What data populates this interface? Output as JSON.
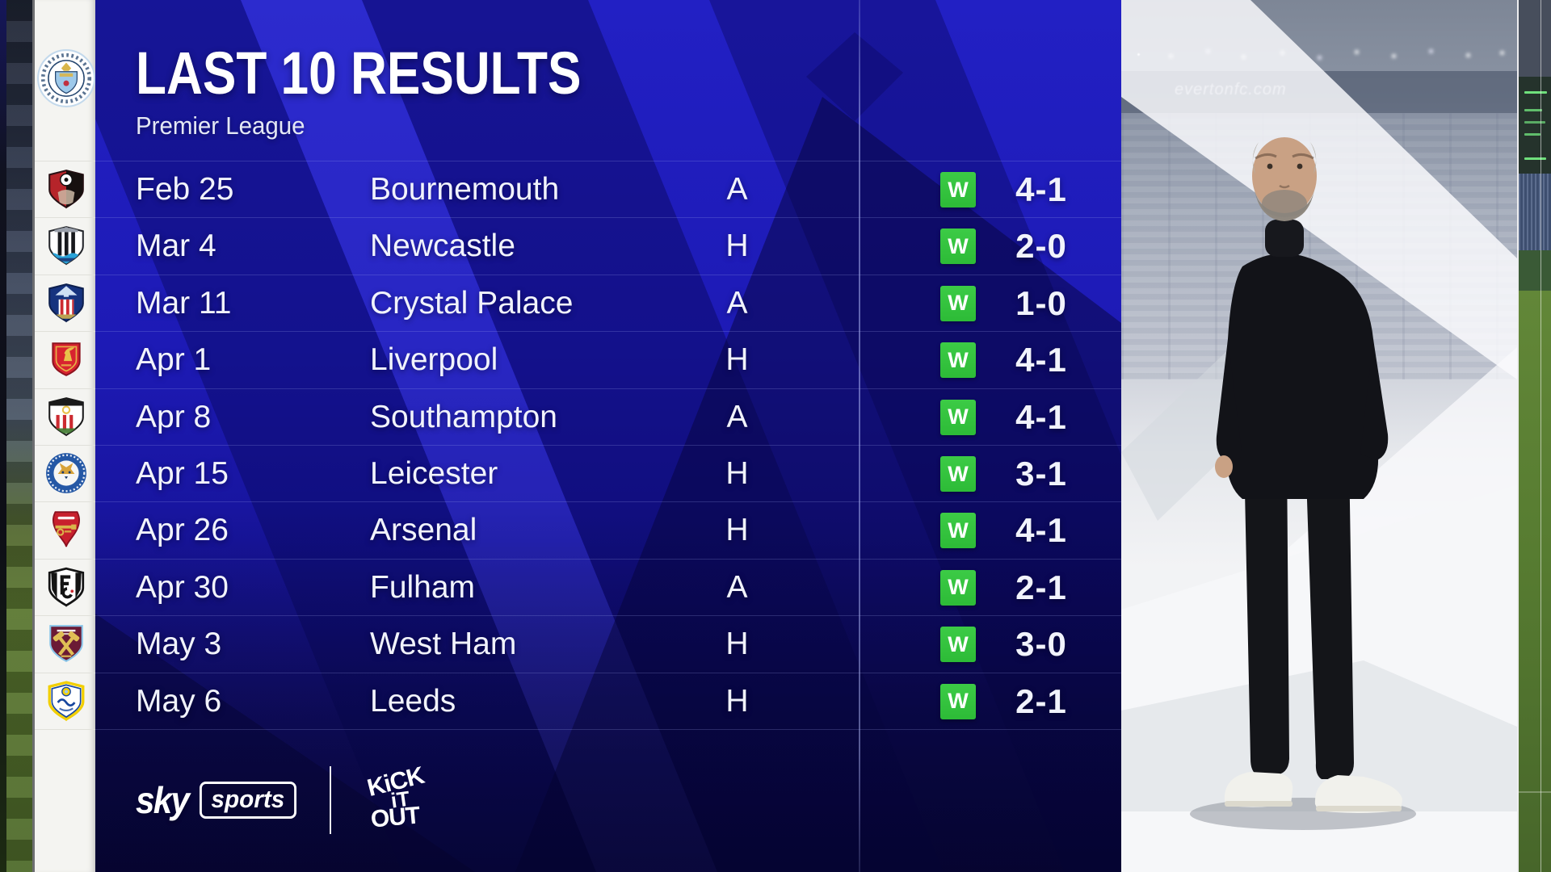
{
  "header": {
    "title": "LAST 10 RESULTS",
    "subtitle": "Premier League"
  },
  "club": {
    "name": "Manchester City",
    "badge": "manchester-city-badge"
  },
  "table": {
    "rows": [
      {
        "date": "Feb 25",
        "opponent": "Bournemouth",
        "venue": "A",
        "result": "W",
        "score": "4-1",
        "badge": "bournemouth-badge"
      },
      {
        "date": "Mar 4",
        "opponent": "Newcastle",
        "venue": "H",
        "result": "W",
        "score": "2-0",
        "badge": "newcastle-badge"
      },
      {
        "date": "Mar 11",
        "opponent": "Crystal Palace",
        "venue": "A",
        "result": "W",
        "score": "1-0",
        "badge": "crystal-palace-badge"
      },
      {
        "date": "Apr 1",
        "opponent": "Liverpool",
        "venue": "H",
        "result": "W",
        "score": "4-1",
        "badge": "liverpool-badge"
      },
      {
        "date": "Apr 8",
        "opponent": "Southampton",
        "venue": "A",
        "result": "W",
        "score": "4-1",
        "badge": "southampton-badge"
      },
      {
        "date": "Apr 15",
        "opponent": "Leicester",
        "venue": "H",
        "result": "W",
        "score": "3-1",
        "badge": "leicester-badge"
      },
      {
        "date": "Apr 26",
        "opponent": "Arsenal",
        "venue": "H",
        "result": "W",
        "score": "4-1",
        "badge": "arsenal-badge"
      },
      {
        "date": "Apr 30",
        "opponent": "Fulham",
        "venue": "A",
        "result": "W",
        "score": "2-1",
        "badge": "fulham-badge"
      },
      {
        "date": "May 3",
        "opponent": "West Ham",
        "venue": "H",
        "result": "W",
        "score": "3-0",
        "badge": "west-ham-badge"
      },
      {
        "date": "May 6",
        "opponent": "Leeds",
        "venue": "H",
        "result": "W",
        "score": "2-1",
        "badge": "leeds-badge"
      }
    ]
  },
  "footer": {
    "sky": "sky",
    "sports": "sports",
    "kick_it_out_lines": [
      "KiCK",
      "iT",
      "OUT"
    ]
  },
  "background": {
    "stadium_ad_text": "evertonfc.com"
  },
  "colors": {
    "win_green": "#2fc13a",
    "panel_blue": "#1d1ab5",
    "panel_dark": "#0d0a4e",
    "rail_white": "#f4f4f1"
  }
}
